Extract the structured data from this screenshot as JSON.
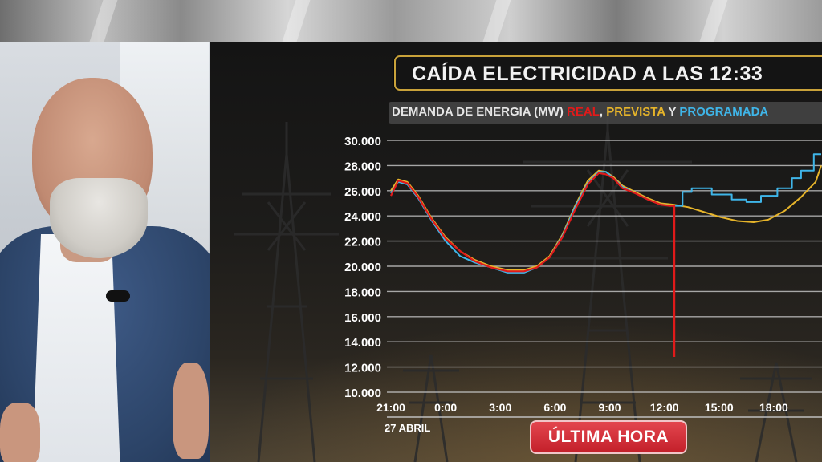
{
  "title": "CAÍDA ELECTRICIDAD A LAS 12:33",
  "subtitle": {
    "prefix": "DEMANDA DE ENERGIA (MW) ",
    "real": "REAL",
    "sep1": ", ",
    "prevista": "PREVISTA",
    "sep2": " Y ",
    "programada": "PROGRAMADA"
  },
  "badge": "ÚLTIMA HORA",
  "colors": {
    "real": "#e01a1a",
    "prevista": "#e6b42a",
    "programada": "#3fb5e8",
    "frame": "#c9a23a"
  },
  "chart_data": {
    "type": "line",
    "title": "CAÍDA ELECTRICIDAD A LAS 12:33",
    "ylabel": "DEMANDA DE ENERGIA (MW)",
    "ylim": [
      10000,
      30000
    ],
    "yticks": [
      "10.000",
      "12.000",
      "14.000",
      "16.000",
      "18.000",
      "20.000",
      "22.000",
      "24.000",
      "26.000",
      "28.000",
      "30.000"
    ],
    "ytick_values": [
      10000,
      12000,
      14000,
      16000,
      18000,
      20000,
      22000,
      24000,
      26000,
      28000,
      30000
    ],
    "xlim": [
      21,
      45
    ],
    "xticks": [
      "21:00",
      "0:00",
      "3:00",
      "6:00",
      "9:00",
      "12:00",
      "15:00",
      "18:00"
    ],
    "xtick_values": [
      21,
      24,
      27,
      30,
      33,
      36,
      39,
      42
    ],
    "x_date_label": "27 ABRIL",
    "grid": true,
    "series": [
      {
        "name": "REAL",
        "color": "#e01a1a",
        "x": [
          21.0,
          21.4,
          21.9,
          22.5,
          23.2,
          24.0,
          24.8,
          25.6,
          26.5,
          27.4,
          28.3,
          29.0,
          29.7,
          30.4,
          31.1,
          31.8,
          32.4,
          32.8,
          33.2,
          33.7,
          34.4,
          35.1,
          35.8,
          36.3,
          36.55,
          36.55
        ],
        "y": [
          25600,
          26800,
          26600,
          25500,
          23800,
          22200,
          21200,
          20400,
          19900,
          19600,
          19600,
          19900,
          20700,
          22300,
          24500,
          26500,
          27400,
          27300,
          27000,
          26200,
          25800,
          25300,
          24900,
          24800,
          24800,
          12800
        ]
      },
      {
        "name": "PREVISTA",
        "color": "#e6b42a",
        "x": [
          21.0,
          21.4,
          21.9,
          22.5,
          23.2,
          24.0,
          24.8,
          25.6,
          26.5,
          27.4,
          28.3,
          29.0,
          29.7,
          30.4,
          31.1,
          31.8,
          32.4,
          32.8,
          33.2,
          33.7,
          34.4,
          35.1,
          35.8,
          36.5,
          37.3,
          38.2,
          39.1,
          40.0,
          40.9,
          41.7,
          42.6,
          43.5,
          44.3,
          45.0
        ],
        "y": [
          26000,
          26900,
          26700,
          25600,
          23900,
          22300,
          21200,
          20500,
          20000,
          19700,
          19700,
          20000,
          20800,
          22500,
          24800,
          26800,
          27600,
          27500,
          27100,
          26400,
          25900,
          25400,
          25000,
          24900,
          24700,
          24300,
          23900,
          23600,
          23500,
          23700,
          24400,
          25500,
          26700,
          28000
        ]
      },
      {
        "name": "PROGRAMADA",
        "color": "#3fb5e8",
        "x": [
          21.0,
          21.4,
          21.9,
          22.5,
          23.2,
          24.0,
          24.8,
          25.6,
          26.5,
          27.4,
          28.3,
          29.0,
          29.7,
          30.4,
          31.1,
          31.8,
          32.4,
          32.8,
          33.2,
          33.7,
          34.4,
          35.1,
          35.8,
          36.5,
          37.0,
          37.0,
          37.5,
          37.5,
          38.6,
          38.6,
          39.7,
          39.7,
          40.5,
          40.5,
          41.3,
          41.3,
          42.2,
          42.2,
          43.0,
          43.0,
          43.5,
          43.5,
          44.2,
          44.2,
          45.0
        ],
        "y": [
          25800,
          26700,
          26500,
          25400,
          23700,
          22000,
          20800,
          20300,
          19900,
          19500,
          19500,
          19900,
          20700,
          22400,
          24700,
          26600,
          27500,
          27500,
          27000,
          26300,
          25800,
          25300,
          24900,
          24800,
          24800,
          25900,
          25900,
          26200,
          26200,
          25700,
          25700,
          25300,
          25300,
          25100,
          25100,
          25600,
          25600,
          26200,
          26200,
          27000,
          27000,
          27600,
          27600,
          28900,
          28900
        ]
      }
    ]
  }
}
